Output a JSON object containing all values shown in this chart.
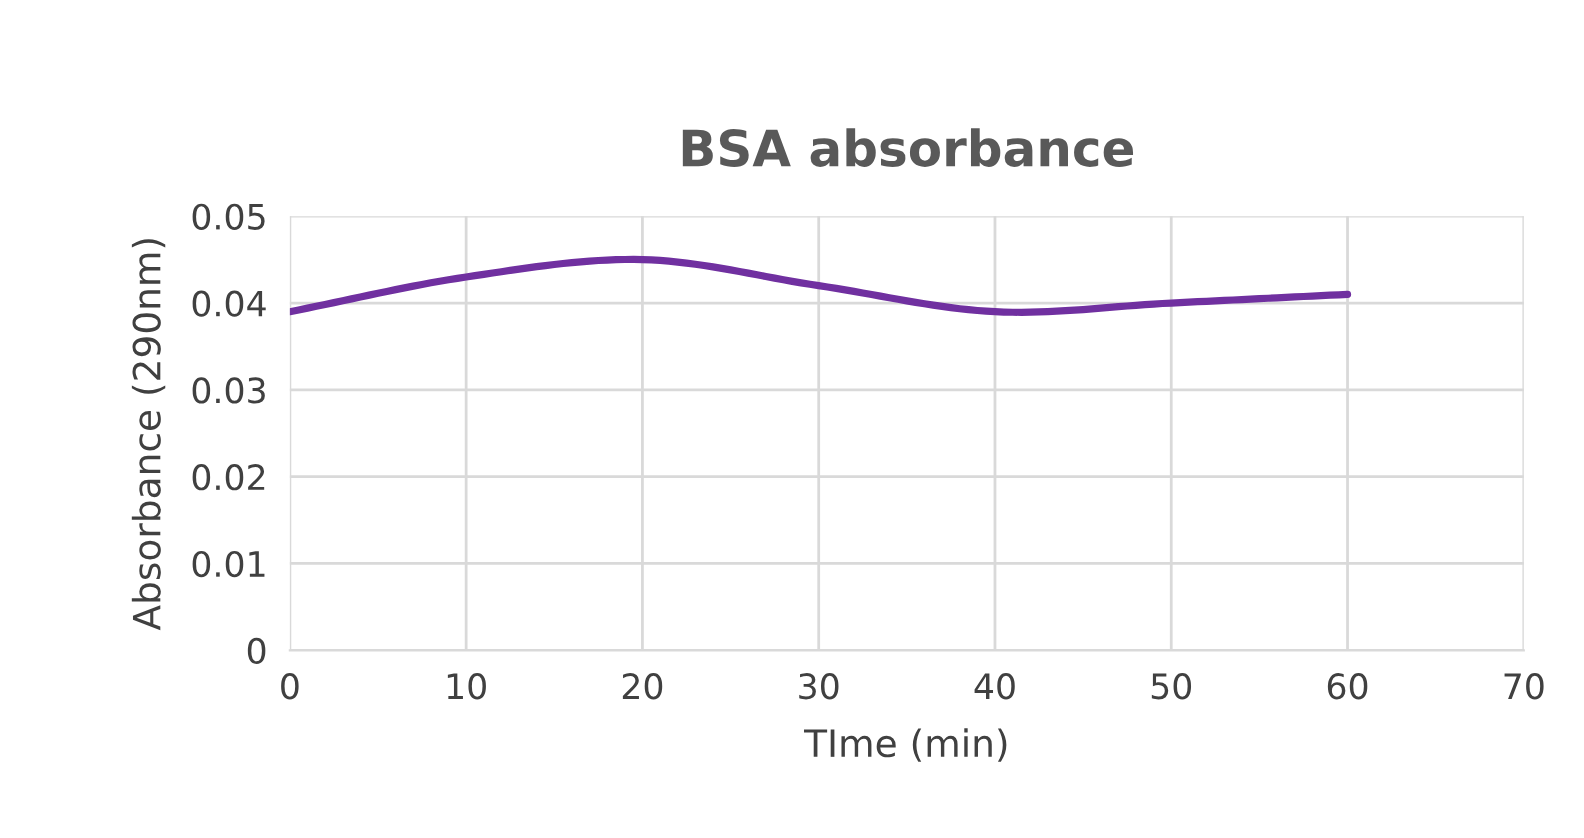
{
  "chart_data": {
    "type": "line",
    "title": "BSA absorbance",
    "xlabel": "TIme (min)",
    "ylabel": "Absorbance (290nm)",
    "x": [
      0,
      10,
      20,
      30,
      40,
      50,
      60
    ],
    "series": [
      {
        "color": "#7030a0",
        "values": [
          0.039,
          0.043,
          0.045,
          0.042,
          0.039,
          0.04,
          0.041
        ]
      }
    ],
    "xlim": [
      0,
      70
    ],
    "xticks": [
      0,
      10,
      20,
      30,
      40,
      50,
      60,
      70
    ],
    "ylim": [
      0,
      0.05
    ],
    "yticks": [
      0,
      0.01,
      0.02,
      0.03,
      0.04,
      0.05
    ],
    "grid": true,
    "marker": "none",
    "line_style": "solid"
  }
}
